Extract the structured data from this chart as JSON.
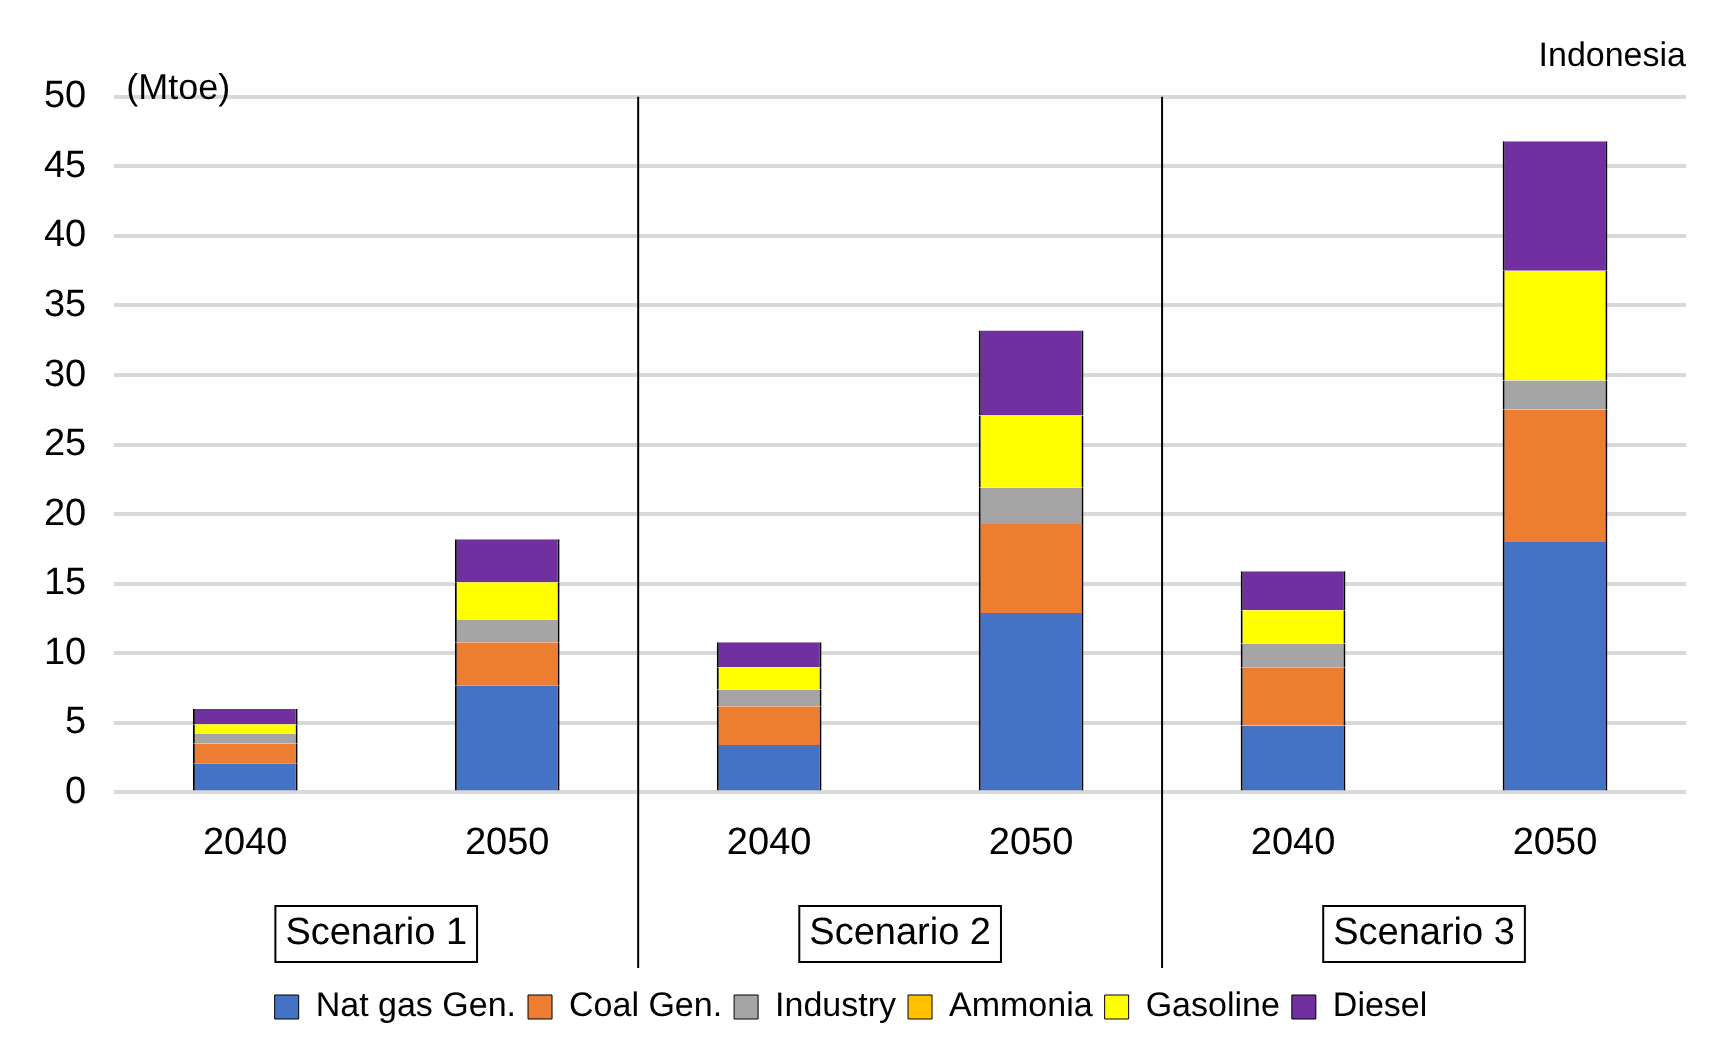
{
  "chart_data": {
    "type": "bar",
    "title": "Indonesia",
    "ylabel": "(Mtoe)",
    "categories": [
      "2040",
      "2050",
      "2040",
      "2050",
      "2040",
      "2050"
    ],
    "stacked": true,
    "ylim": [
      0,
      50
    ],
    "yticks": [
      0,
      5,
      10,
      15,
      20,
      25,
      30,
      35,
      40,
      45,
      50
    ],
    "grid": "y",
    "legend": "bottom",
    "annotations": [
      "Scenario 1",
      "Scenario 2",
      "Scenario 3"
    ],
    "series": [
      {
        "name": "Nat gas Gen.",
        "color": "#4472c4",
        "values": [
          2.1,
          7.7,
          3.4,
          12.9,
          4.8,
          18.0
        ]
      },
      {
        "name": "Coal Gen.",
        "color": "#ed7d31",
        "values": [
          1.4,
          3.1,
          2.8,
          6.4,
          4.2,
          9.5
        ]
      },
      {
        "name": "Industry",
        "color": "#a5a5a5",
        "values": [
          0.7,
          1.6,
          1.2,
          2.6,
          1.7,
          2.1
        ]
      },
      {
        "name": "Ammonia",
        "color": "#ffc000",
        "values": [
          0,
          0,
          0,
          0,
          0,
          0
        ]
      },
      {
        "name": "Gasoline",
        "color": "#ffff00",
        "values": [
          0.7,
          2.7,
          1.6,
          5.2,
          2.4,
          7.9
        ]
      },
      {
        "name": "Diesel",
        "color": "#7030a0",
        "values": [
          1.1,
          3.1,
          1.8,
          6.1,
          2.8,
          9.3
        ]
      }
    ]
  }
}
